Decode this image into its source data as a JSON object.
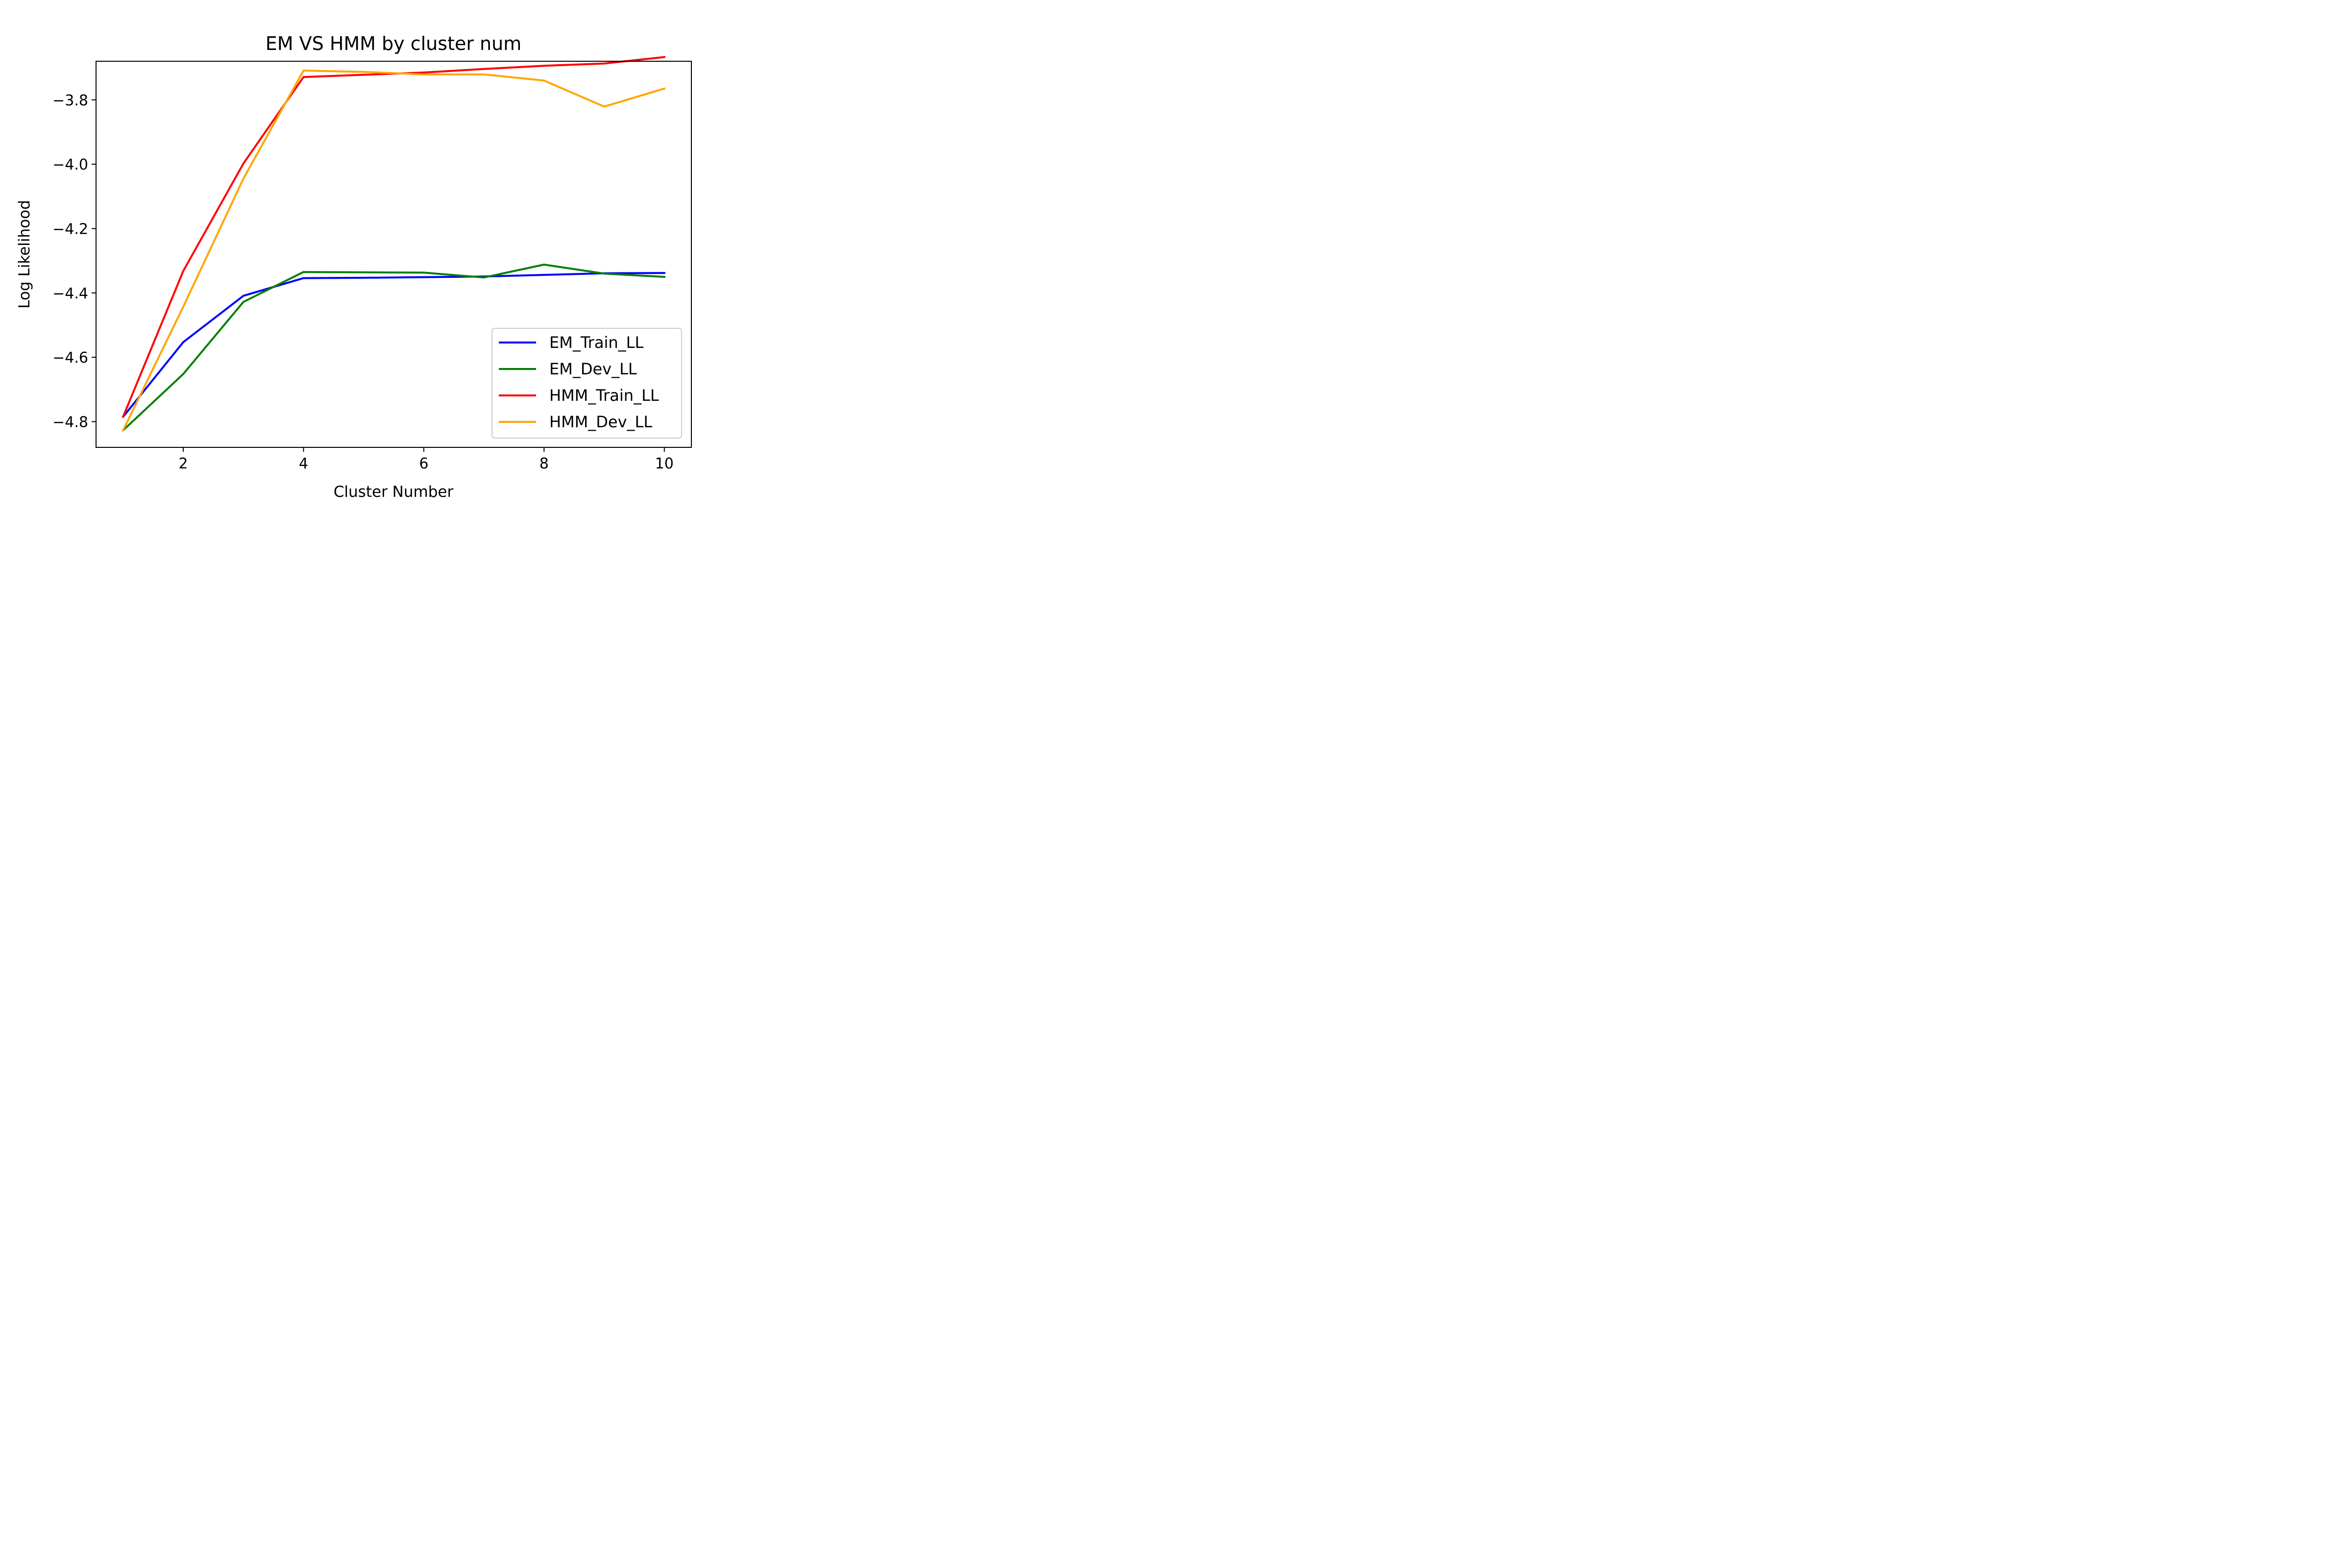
{
  "chart_data": {
    "type": "line",
    "title": "EM VS HMM by cluster num",
    "xlabel": "Cluster Number",
    "ylabel": "Log Likelihood",
    "xlim": [
      0.55,
      10.45
    ],
    "ylim": [
      -4.88,
      -3.68
    ],
    "xticks": [
      2,
      4,
      6,
      8,
      10
    ],
    "xtick_labels": [
      "2",
      "4",
      "6",
      "8",
      "10"
    ],
    "yticks": [
      -4.8,
      -4.6,
      -4.4,
      -4.2,
      -4.0,
      -3.8
    ],
    "ytick_labels": [
      "−4.8",
      "−4.6",
      "−4.4",
      "−4.2",
      "−4.0",
      "−3.8"
    ],
    "grid": false,
    "legend_position": "lower-right",
    "x": [
      1,
      2,
      3,
      4,
      5,
      6,
      7,
      8,
      9,
      10
    ],
    "series": [
      {
        "name": "EM_Train_LL",
        "color": "#0000ff",
        "values": [
          -4.785,
          -4.553,
          -4.409,
          -4.354,
          -4.353,
          -4.351,
          -4.349,
          -4.344,
          -4.339,
          -4.338
        ]
      },
      {
        "name": "EM_Dev_LL",
        "color": "#008000",
        "values": [
          -4.827,
          -4.652,
          -4.428,
          -4.335,
          -4.336,
          -4.337,
          -4.352,
          -4.312,
          -4.34,
          -4.35
        ]
      },
      {
        "name": "HMM_Train_LL",
        "color": "#ff0000",
        "values": [
          -4.785,
          -4.332,
          -3.998,
          -3.729,
          -3.722,
          -3.715,
          -3.704,
          -3.694,
          -3.687,
          -3.667
        ]
      },
      {
        "name": "HMM_Dev_LL",
        "color": "#ffa500",
        "values": [
          -4.827,
          -4.443,
          -4.045,
          -3.709,
          -3.713,
          -3.721,
          -3.721,
          -3.74,
          -3.821,
          -3.765
        ]
      }
    ]
  }
}
